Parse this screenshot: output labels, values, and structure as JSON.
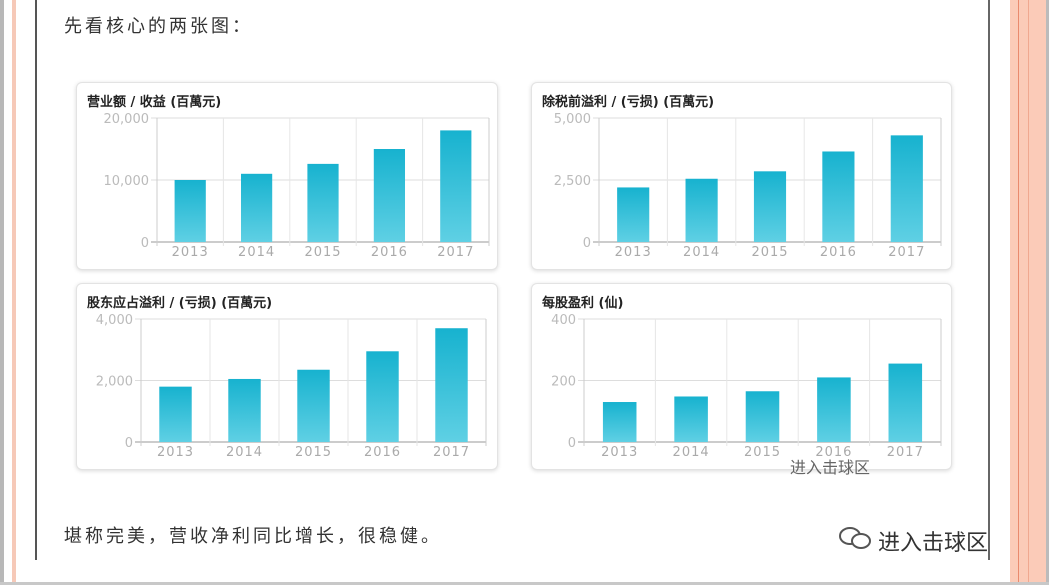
{
  "intro_text": "先看核心的两张图：",
  "outro_text": "堪称完美，营收净利同比增长，很稳健。",
  "watermark": "进入击球区",
  "colors": {
    "bar_top": "#17b2cf",
    "bar_bottom": "#5fd0e4",
    "grid": "#dddddd",
    "tick": "#aaaaaa"
  },
  "chart_data": [
    {
      "type": "bar",
      "title": "营业额 / 收益 (百萬元)",
      "categories": [
        "2013",
        "2014",
        "2015",
        "2016",
        "2017"
      ],
      "values": [
        10000,
        11000,
        12600,
        15000,
        18000
      ],
      "yticks": [
        "0",
        "10,000",
        "20,000"
      ],
      "ylim": [
        0,
        20000
      ]
    },
    {
      "type": "bar",
      "title": "除税前溢利 / (亏损) (百萬元)",
      "categories": [
        "2013",
        "2014",
        "2015",
        "2016",
        "2017"
      ],
      "values": [
        2200,
        2550,
        2850,
        3650,
        4300
      ],
      "yticks": [
        "0",
        "2,500",
        "5,000"
      ],
      "ylim": [
        0,
        5000
      ]
    },
    {
      "type": "bar",
      "title": "股东应占溢利 / (亏损) (百萬元)",
      "categories": [
        "2013",
        "2014",
        "2015",
        "2016",
        "2017"
      ],
      "values": [
        1800,
        2050,
        2350,
        2950,
        3700
      ],
      "yticks": [
        "0",
        "2,000",
        "4,000"
      ],
      "ylim": [
        0,
        4000
      ]
    },
    {
      "type": "bar",
      "title": "每股盈利 (仙)",
      "categories": [
        "2013",
        "2014",
        "2015",
        "2016",
        "2017"
      ],
      "values": [
        130,
        148,
        165,
        210,
        255
      ],
      "yticks": [
        "0",
        "200",
        "400"
      ],
      "ylim": [
        0,
        400
      ]
    }
  ]
}
